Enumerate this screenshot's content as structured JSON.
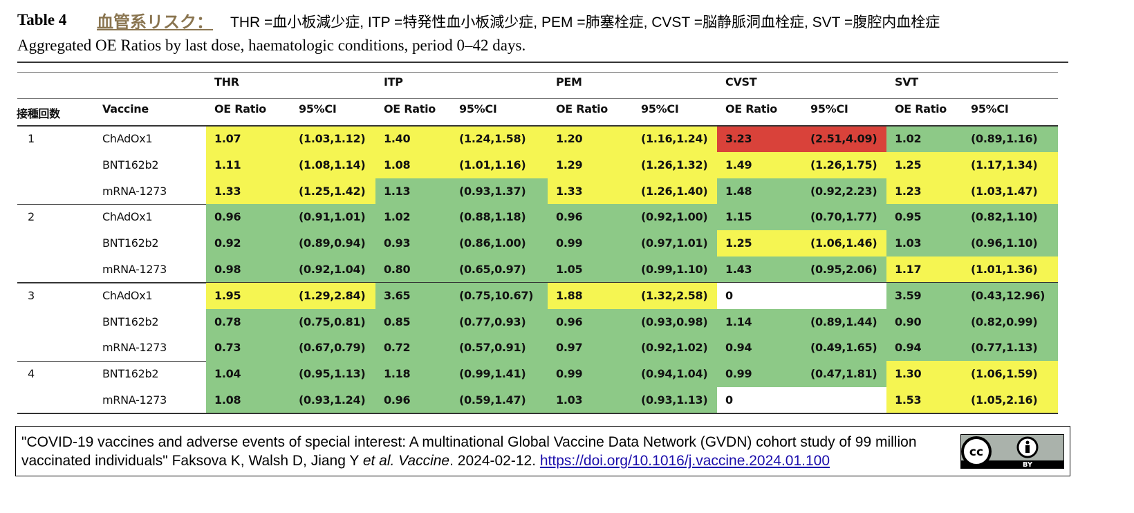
{
  "header": {
    "table_label": "Table 4",
    "risk_label": "血管系リスク：",
    "abbreviations": "THR =血小板減少症, ITP =特発性血小板減少症, PEM =肺塞栓症, CVST =脳静脈洞血栓症, SVT =腹腔内血栓症",
    "subtitle": "Aggregated OE Ratios by last dose, haematologic conditions, period 0–42 days."
  },
  "table": {
    "conditions": [
      "THR",
      "ITP",
      "PEM",
      "CVST",
      "SVT"
    ],
    "dose_header": "接種回数",
    "vaccine_header": "Vaccine",
    "ratio_header": "OE Ratio",
    "ci_header": "95%CI",
    "groups": [
      {
        "dose": "1",
        "rows": [
          {
            "vaccine": "ChAdOx1",
            "cells": [
              "1.07",
              "(1.03,1.12)",
              "1.40",
              "(1.24,1.58)",
              "1.20",
              "(1.16,1.24)",
              "3.23",
              "(2.51,4.09)",
              "1.02",
              "(0.89,1.16)"
            ],
            "fills": [
              "#f5f552",
              "#f5f552",
              "#f5f552",
              "#d9423a",
              "#8dc987"
            ]
          },
          {
            "vaccine": "BNT162b2",
            "cells": [
              "1.11",
              "(1.08,1.14)",
              "1.08",
              "(1.01,1.16)",
              "1.29",
              "(1.26,1.32)",
              "1.49",
              "(1.26,1.75)",
              "1.25",
              "(1.17,1.34)"
            ],
            "fills": [
              "#f5f552",
              "#f5f552",
              "#f5f552",
              "#f5f552",
              "#f5f552"
            ]
          },
          {
            "vaccine": "mRNA-1273",
            "cells": [
              "1.33",
              "(1.25,1.42)",
              "1.13",
              "(0.93,1.37)",
              "1.33",
              "(1.26,1.40)",
              "1.48",
              "(0.92,2.23)",
              "1.23",
              "(1.03,1.47)"
            ],
            "fills": [
              "#f5f552",
              "#8dc987",
              "#f5f552",
              "#8dc987",
              "#f5f552"
            ]
          }
        ]
      },
      {
        "dose": "2",
        "rows": [
          {
            "vaccine": "ChAdOx1",
            "cells": [
              "0.96",
              "(0.91,1.01)",
              "1.02",
              "(0.88,1.18)",
              "0.96",
              "(0.92,1.00)",
              "1.15",
              "(0.70,1.77)",
              "0.95",
              "(0.82,1.10)"
            ],
            "fills": [
              "#8dc987",
              "#8dc987",
              "#8dc987",
              "#8dc987",
              "#8dc987"
            ]
          },
          {
            "vaccine": "BNT162b2",
            "cells": [
              "0.92",
              "(0.89,0.94)",
              "0.93",
              "(0.86,1.00)",
              "0.99",
              "(0.97,1.01)",
              "1.25",
              "(1.06,1.46)",
              "1.03",
              "(0.96,1.10)"
            ],
            "fills": [
              "#8dc987",
              "#8dc987",
              "#8dc987",
              "#f5f552",
              "#8dc987"
            ]
          },
          {
            "vaccine": "mRNA-1273",
            "cells": [
              "0.98",
              "(0.92,1.04)",
              "0.80",
              "(0.65,0.97)",
              "1.05",
              "(0.99,1.10)",
              "1.43",
              "(0.95,2.06)",
              "1.17",
              "(1.01,1.36)"
            ],
            "fills": [
              "#8dc987",
              "#8dc987",
              "#8dc987",
              "#8dc987",
              "#f5f552"
            ]
          }
        ]
      },
      {
        "dose": "3",
        "rows": [
          {
            "vaccine": "ChAdOx1",
            "cells": [
              "1.95",
              "(1.29,2.84)",
              "3.65",
              "(0.75,10.67)",
              "1.88",
              "(1.32,2.58)",
              "0",
              null,
              "3.59",
              "(0.43,12.96)"
            ],
            "fills": [
              "#f5f552",
              "#8dc987",
              "#f5f552",
              "#ffffff",
              "#8dc987"
            ]
          },
          {
            "vaccine": "BNT162b2",
            "cells": [
              "0.78",
              "(0.75,0.81)",
              "0.85",
              "(0.77,0.93)",
              "0.96",
              "(0.93,0.98)",
              "1.14",
              "(0.89,1.44)",
              "0.90",
              "(0.82,0.99)"
            ],
            "fills": [
              "#8dc987",
              "#8dc987",
              "#8dc987",
              "#8dc987",
              "#8dc987"
            ]
          },
          {
            "vaccine": "mRNA-1273",
            "cells": [
              "0.73",
              "(0.67,0.79)",
              "0.72",
              "(0.57,0.91)",
              "0.97",
              "(0.92,1.02)",
              "0.94",
              "(0.49,1.65)",
              "0.94",
              "(0.77,1.13)"
            ],
            "fills": [
              "#8dc987",
              "#8dc987",
              "#8dc987",
              "#8dc987",
              "#8dc987"
            ]
          }
        ]
      },
      {
        "dose": "4",
        "rows": [
          {
            "vaccine": "BNT162b2",
            "cells": [
              "1.04",
              "(0.95,1.13)",
              "1.18",
              "(0.99,1.41)",
              "0.99",
              "(0.94,1.04)",
              "0.99",
              "(0.47,1.81)",
              "1.30",
              "(1.06,1.59)"
            ],
            "fills": [
              "#8dc987",
              "#8dc987",
              "#8dc987",
              "#8dc987",
              "#f5f552"
            ]
          },
          {
            "vaccine": "mRNA-1273",
            "cells": [
              "1.08",
              "(0.93,1.24)",
              "0.96",
              "(0.59,1.47)",
              "1.03",
              "(0.93,1.13)",
              "0",
              null,
              "1.53",
              "(1.05,2.16)"
            ],
            "fills": [
              "#8dc987",
              "#8dc987",
              "#8dc987",
              "#ffffff",
              "#f5f552"
            ]
          }
        ]
      }
    ]
  },
  "footer": {
    "citation": [
      {
        "text": "\"COVID-19 vaccines and adverse events of special interest: A multinational Global Vaccine Data Network (GVDN) cohort study of 99 million vaccinated individuals\" Faksova K, Walsh D, Jiang Y ",
        "style": "normal"
      },
      {
        "text": "et al. Vaccine",
        "style": "italic"
      },
      {
        "text": ". 2024-02-12. ",
        "style": "normal"
      },
      {
        "text": "https://doi.org/10.1016/j.vaccine.2024.01.100",
        "style": "link"
      }
    ],
    "license": "BY"
  }
}
